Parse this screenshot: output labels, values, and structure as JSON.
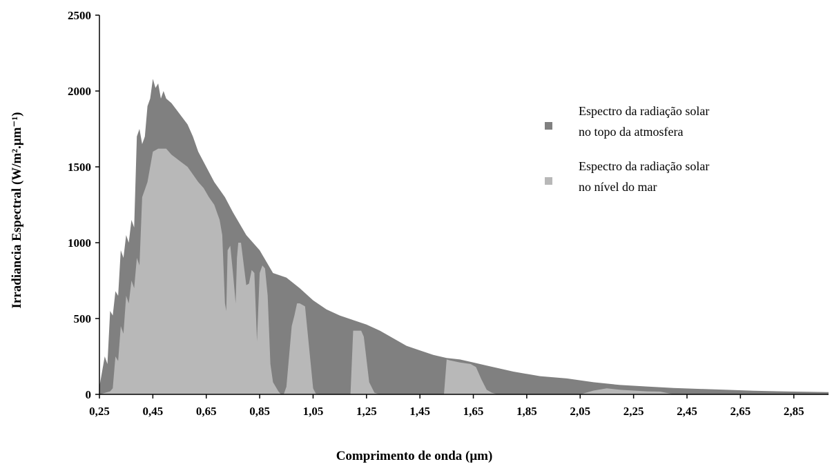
{
  "chart_data": {
    "type": "area",
    "xlabel": "Comprimento de onda (μm)",
    "ylabel": "Irradiancia Espectral (W/m².μm⁻¹)",
    "xlim": [
      0.25,
      2.98
    ],
    "ylim": [
      0,
      2500
    ],
    "x_ticks": [
      "0,25",
      "0,45",
      "0,65",
      "0,85",
      "1,05",
      "1,25",
      "1,45",
      "1,65",
      "1,85",
      "2,05",
      "2,25",
      "2,45",
      "2,65",
      "2,85"
    ],
    "x_tick_values": [
      0.25,
      0.45,
      0.65,
      0.85,
      1.05,
      1.25,
      1.45,
      1.65,
      1.85,
      2.05,
      2.25,
      2.45,
      2.65,
      2.85
    ],
    "y_ticks": [
      "0",
      "500",
      "1000",
      "1500",
      "2000",
      "2500"
    ],
    "y_tick_values": [
      0,
      500,
      1000,
      1500,
      2000,
      2500
    ],
    "legend_position": "right",
    "series": [
      {
        "name": "Espectro da radiação solar no topo da atmosfera",
        "legend_lines": [
          "Espectro da radiação solar",
          "no topo da atmosfera"
        ],
        "color": "#808080",
        "x": [
          0.25,
          0.27,
          0.28,
          0.29,
          0.3,
          0.31,
          0.32,
          0.33,
          0.34,
          0.35,
          0.36,
          0.37,
          0.38,
          0.39,
          0.4,
          0.41,
          0.42,
          0.43,
          0.44,
          0.45,
          0.46,
          0.47,
          0.48,
          0.49,
          0.5,
          0.52,
          0.55,
          0.58,
          0.6,
          0.62,
          0.65,
          0.68,
          0.7,
          0.72,
          0.75,
          0.8,
          0.85,
          0.9,
          0.95,
          1.0,
          1.05,
          1.1,
          1.15,
          1.2,
          1.25,
          1.3,
          1.35,
          1.4,
          1.45,
          1.5,
          1.55,
          1.6,
          1.65,
          1.7,
          1.8,
          1.9,
          2.0,
          2.1,
          2.2,
          2.3,
          2.4,
          2.5,
          2.6,
          2.7,
          2.8,
          2.9,
          2.98
        ],
        "y": [
          50,
          250,
          200,
          550,
          520,
          680,
          650,
          950,
          900,
          1050,
          1000,
          1150,
          1100,
          1700,
          1750,
          1650,
          1700,
          1900,
          1950,
          2080,
          2020,
          2050,
          1950,
          2000,
          1950,
          1920,
          1850,
          1780,
          1700,
          1600,
          1500,
          1400,
          1350,
          1300,
          1200,
          1050,
          950,
          800,
          770,
          700,
          620,
          560,
          520,
          490,
          460,
          420,
          370,
          320,
          290,
          260,
          240,
          230,
          210,
          190,
          150,
          120,
          105,
          80,
          62,
          52,
          42,
          36,
          30,
          24,
          20,
          17,
          15
        ]
      },
      {
        "name": "Espectro da radiação solar no nível do mar",
        "legend_lines": [
          "Espectro da radiação solar",
          "no nível do mar"
        ],
        "color": "#b8b8b8",
        "x": [
          0.25,
          0.29,
          0.3,
          0.31,
          0.32,
          0.33,
          0.34,
          0.35,
          0.36,
          0.37,
          0.38,
          0.39,
          0.4,
          0.41,
          0.42,
          0.43,
          0.44,
          0.45,
          0.47,
          0.5,
          0.52,
          0.55,
          0.58,
          0.6,
          0.62,
          0.64,
          0.66,
          0.68,
          0.7,
          0.71,
          0.72,
          0.725,
          0.73,
          0.74,
          0.75,
          0.76,
          0.765,
          0.77,
          0.78,
          0.8,
          0.81,
          0.82,
          0.83,
          0.84,
          0.85,
          0.86,
          0.87,
          0.88,
          0.89,
          0.9,
          0.92,
          0.93,
          0.94,
          0.95,
          0.97,
          0.98,
          0.99,
          1.0,
          1.02,
          1.03,
          1.05,
          1.06,
          1.08,
          1.1,
          1.12,
          1.15,
          1.18,
          1.19,
          1.2,
          1.23,
          1.24,
          1.26,
          1.28,
          1.3,
          1.33,
          1.4,
          1.47,
          1.5,
          1.53,
          1.54,
          1.55,
          1.56,
          1.6,
          1.64,
          1.66,
          1.68,
          1.7,
          1.72,
          1.74,
          1.8,
          1.9,
          1.95,
          2.0,
          2.05,
          2.1,
          2.15,
          2.2,
          2.25,
          2.3,
          2.35,
          2.4,
          2.5,
          2.98
        ],
        "y": [
          0,
          20,
          40,
          250,
          220,
          450,
          400,
          650,
          600,
          750,
          700,
          900,
          850,
          1300,
          1350,
          1400,
          1500,
          1600,
          1620,
          1620,
          1580,
          1540,
          1500,
          1450,
          1400,
          1360,
          1300,
          1250,
          1150,
          1050,
          600,
          550,
          950,
          980,
          800,
          600,
          900,
          1000,
          1000,
          720,
          730,
          820,
          800,
          350,
          800,
          850,
          830,
          650,
          200,
          80,
          20,
          0,
          0,
          50,
          450,
          520,
          600,
          600,
          580,
          400,
          40,
          5,
          0,
          0,
          0,
          0,
          0,
          0,
          420,
          420,
          380,
          80,
          10,
          0,
          0,
          0,
          0,
          0,
          0,
          0,
          230,
          225,
          210,
          200,
          180,
          100,
          30,
          10,
          0,
          0,
          0,
          0,
          0,
          0,
          25,
          40,
          30,
          25,
          20,
          18,
          0,
          0,
          0
        ]
      }
    ]
  }
}
